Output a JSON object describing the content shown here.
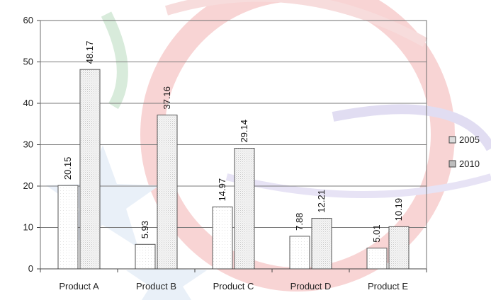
{
  "chart_data": {
    "type": "bar",
    "categories": [
      "Product A",
      "Product B",
      "Product C",
      "Product D",
      "Product E"
    ],
    "series": [
      {
        "name": "2005",
        "values": [
          20.15,
          5.93,
          14.97,
          7.88,
          5.01
        ]
      },
      {
        "name": "2010",
        "values": [
          48.17,
          37.16,
          29.14,
          12.21,
          10.19
        ]
      }
    ],
    "data_labels": [
      [
        "20.15",
        "5.93",
        "14.97",
        "7.88",
        "5.01"
      ],
      [
        "48.17",
        "37.16",
        "29.14",
        "12.21",
        "10.19"
      ]
    ],
    "yticks": [
      "0",
      "10",
      "20",
      "30",
      "40",
      "50",
      "60"
    ],
    "ylim": [
      0,
      60
    ],
    "grid": true,
    "legend_position": "right",
    "title": "",
    "xlabel": "",
    "ylabel": ""
  }
}
